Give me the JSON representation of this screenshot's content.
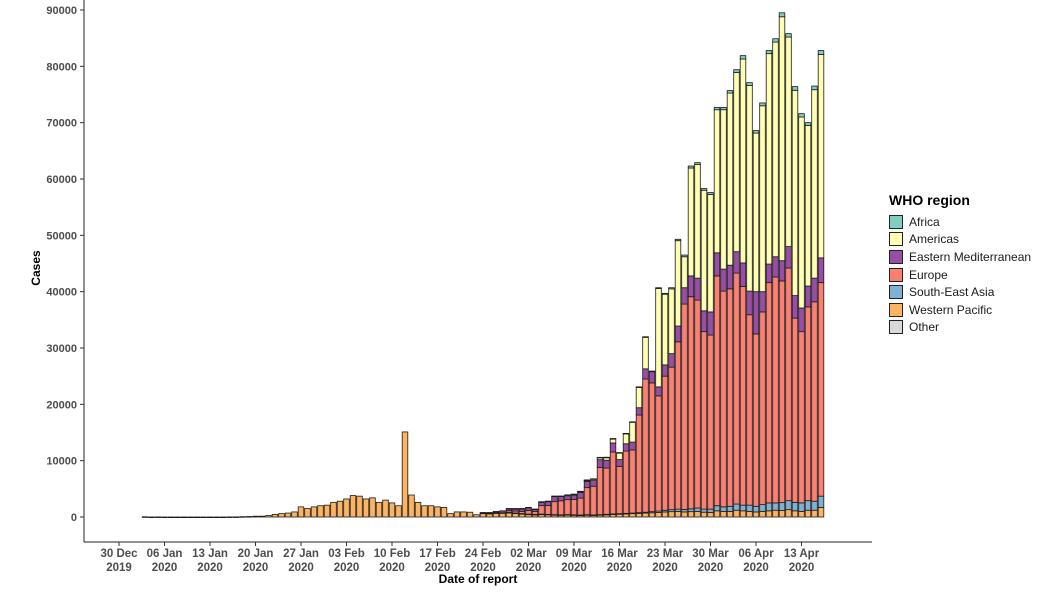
{
  "chart_data": {
    "type": "bar",
    "stacked": true,
    "xlabel": "Date of report",
    "ylabel": "Cases",
    "ylim": [
      0,
      90000
    ],
    "yticks": [
      0,
      10000,
      20000,
      30000,
      40000,
      50000,
      60000,
      70000,
      80000,
      90000
    ],
    "xticks": [
      {
        "date": "2019-12-30",
        "label": [
          "30 Dec",
          "2019"
        ]
      },
      {
        "date": "2020-01-06",
        "label": [
          "06 Jan",
          "2020"
        ]
      },
      {
        "date": "2020-01-13",
        "label": [
          "13 Jan",
          "2020"
        ]
      },
      {
        "date": "2020-01-20",
        "label": [
          "20 Jan",
          "2020"
        ]
      },
      {
        "date": "2020-01-27",
        "label": [
          "27 Jan",
          "2020"
        ]
      },
      {
        "date": "2020-02-03",
        "label": [
          "03 Feb",
          "2020"
        ]
      },
      {
        "date": "2020-02-10",
        "label": [
          "10 Feb",
          "2020"
        ]
      },
      {
        "date": "2020-02-17",
        "label": [
          "17 Feb",
          "2020"
        ]
      },
      {
        "date": "2020-02-24",
        "label": [
          "24 Feb",
          "2020"
        ]
      },
      {
        "date": "2020-03-02",
        "label": [
          "02 Mar",
          "2020"
        ]
      },
      {
        "date": "2020-03-09",
        "label": [
          "09 Mar",
          "2020"
        ]
      },
      {
        "date": "2020-03-16",
        "label": [
          "16 Mar",
          "2020"
        ]
      },
      {
        "date": "2020-03-23",
        "label": [
          "23 Mar",
          "2020"
        ]
      },
      {
        "date": "2020-03-30",
        "label": [
          "30 Mar",
          "2020"
        ]
      },
      {
        "date": "2020-04-06",
        "label": [
          "06 Apr",
          "2020"
        ]
      },
      {
        "date": "2020-04-13",
        "label": [
          "13 Apr",
          "2020"
        ]
      }
    ],
    "xlim": [
      "2019-12-26",
      "2020-04-21"
    ],
    "grid": false,
    "legend": {
      "title": "WHO region",
      "placement": "right"
    },
    "first_date": "2020-01-03",
    "last_date": "2020-04-16",
    "series": [
      {
        "name": "Africa",
        "color": "#80cdc1",
        "values": [
          0,
          0,
          0,
          0,
          0,
          0,
          0,
          0,
          0,
          0,
          0,
          0,
          0,
          0,
          0,
          0,
          0,
          0,
          0,
          0,
          0,
          0,
          0,
          0,
          0,
          0,
          0,
          0,
          0,
          0,
          0,
          0,
          0,
          0,
          0,
          0,
          0,
          0,
          0,
          0,
          0,
          0,
          0,
          0,
          0,
          0,
          0,
          0,
          0,
          0,
          0,
          0,
          0,
          0,
          0,
          0,
          0,
          0,
          0,
          0,
          0,
          0,
          0,
          0,
          0,
          0,
          5,
          10,
          10,
          20,
          20,
          30,
          30,
          40,
          40,
          50,
          80,
          100,
          100,
          150,
          150,
          200,
          250,
          300,
          350,
          300,
          300,
          350,
          400,
          400,
          450,
          500,
          600,
          500,
          450,
          500,
          550,
          600,
          700,
          600,
          650,
          600,
          500,
          650,
          700
        ]
      },
      {
        "name": "Americas",
        "color": "#ffffb3",
        "values": [
          0,
          0,
          0,
          0,
          0,
          0,
          0,
          0,
          0,
          0,
          0,
          0,
          0,
          0,
          0,
          0,
          0,
          0,
          0,
          0,
          0,
          0,
          0,
          0,
          0,
          0,
          0,
          0,
          0,
          0,
          0,
          0,
          0,
          0,
          0,
          0,
          0,
          0,
          0,
          0,
          0,
          0,
          0,
          0,
          0,
          0,
          0,
          0,
          0,
          0,
          0,
          0,
          0,
          0,
          0,
          0,
          50,
          50,
          50,
          50,
          50,
          100,
          100,
          100,
          100,
          150,
          150,
          200,
          250,
          300,
          400,
          500,
          750,
          1200,
          1800,
          3550,
          3620,
          5600,
          0,
          17450,
          12550,
          11500,
          15150,
          5500,
          19150,
          20200,
          21400,
          20850,
          25400,
          28300,
          30550,
          31800,
          36200,
          36500,
          28150,
          33000,
          37350,
          38100,
          43300,
          37200,
          36450,
          33900,
          28500,
          33450,
          36100
        ]
      },
      {
        "name": "Eastern Mediterranean",
        "color": "#984ea3",
        "values": [
          0,
          0,
          0,
          0,
          0,
          0,
          0,
          0,
          0,
          0,
          0,
          0,
          0,
          0,
          0,
          0,
          0,
          0,
          0,
          0,
          0,
          0,
          0,
          0,
          0,
          0,
          0,
          0,
          0,
          0,
          0,
          0,
          0,
          0,
          0,
          0,
          0,
          0,
          0,
          0,
          0,
          0,
          0,
          0,
          0,
          0,
          0,
          0,
          0,
          0,
          0,
          0,
          100,
          150,
          200,
          250,
          350,
          400,
          450,
          500,
          400,
          600,
          700,
          900,
          750,
          700,
          800,
          1000,
          1100,
          1000,
          1400,
          1400,
          1600,
          1200,
          1300,
          1400,
          1300,
          1800,
          2000,
          1600,
          2000,
          2400,
          2800,
          2900,
          3700,
          3900,
          3700,
          4100,
          4100,
          3900,
          4200,
          3800,
          4200,
          4200,
          7500,
          3600,
          3300,
          3600,
          3600,
          3800,
          4000,
          4200,
          3700,
          4200,
          4400
        ]
      },
      {
        "name": "Europe",
        "color": "#fb8072",
        "values": [
          0,
          0,
          0,
          0,
          0,
          0,
          0,
          0,
          0,
          0,
          0,
          0,
          0,
          0,
          0,
          0,
          0,
          0,
          0,
          0,
          0,
          0,
          0,
          0,
          0,
          0,
          0,
          0,
          0,
          0,
          0,
          0,
          0,
          0,
          0,
          0,
          0,
          0,
          0,
          0,
          0,
          0,
          0,
          0,
          0,
          0,
          0,
          0,
          0,
          0,
          0,
          0,
          100,
          100,
          150,
          250,
          300,
          350,
          400,
          650,
          500,
          1500,
          1550,
          2300,
          2500,
          2650,
          2700,
          3000,
          4800,
          5100,
          8350,
          8200,
          11000,
          8400,
          11050,
          11200,
          17330,
          23650,
          22850,
          20450,
          23800,
          25300,
          29700,
          36450,
          37650,
          36900,
          31500,
          30900,
          40800,
          38300,
          38600,
          41000,
          38800,
          33800,
          30600,
          34200,
          39100,
          40100,
          39350,
          41300,
          32700,
          30400,
          34400,
          35400,
          37900
        ]
      },
      {
        "name": "South-East Asia",
        "color": "#80b1d3",
        "values": [
          0,
          0,
          0,
          0,
          0,
          0,
          0,
          0,
          0,
          0,
          0,
          0,
          0,
          0,
          0,
          0,
          0,
          0,
          0,
          0,
          0,
          0,
          0,
          0,
          0,
          0,
          0,
          0,
          0,
          0,
          0,
          0,
          0,
          0,
          0,
          0,
          0,
          0,
          0,
          0,
          0,
          0,
          0,
          0,
          0,
          0,
          0,
          0,
          0,
          0,
          0,
          0,
          0,
          0,
          0,
          0,
          5,
          5,
          5,
          10,
          10,
          15,
          20,
          20,
          30,
          30,
          40,
          50,
          60,
          60,
          70,
          80,
          90,
          90,
          100,
          100,
          120,
          150,
          200,
          250,
          300,
          350,
          400,
          450,
          500,
          600,
          550,
          600,
          900,
          800,
          900,
          1100,
          1000,
          1100,
          1000,
          1200,
          1400,
          1300,
          1400,
          1600,
          1500,
          1500,
          1700,
          1600,
          2000
        ]
      },
      {
        "name": "Western Pacific",
        "color": "#fdb462",
        "values": [
          44,
          0,
          15,
          0,
          0,
          0,
          0,
          0,
          0,
          0,
          0,
          1,
          0,
          17,
          20,
          60,
          80,
          140,
          150,
          260,
          450,
          600,
          700,
          900,
          1800,
          1500,
          1800,
          2000,
          2100,
          2600,
          2800,
          3200,
          3800,
          3700,
          3200,
          3400,
          2600,
          3000,
          2500,
          2000,
          15100,
          3900,
          2600,
          2000,
          2000,
          1800,
          1700,
          600,
          900,
          900,
          850,
          400,
          600,
          550,
          650,
          600,
          800,
          700,
          600,
          500,
          450,
          500,
          450,
          400,
          350,
          400,
          350,
          300,
          350,
          300,
          350,
          400,
          450,
          500,
          550,
          600,
          650,
          700,
          750,
          800,
          900,
          950,
          1000,
          900,
          950,
          1000,
          850,
          800,
          1100,
          1000,
          1000,
          1200,
          1100,
          1000,
          900,
          1000,
          1100,
          1200,
          1150,
          1300,
          1100,
          1000,
          1200,
          1200,
          1700
        ]
      },
      {
        "name": "Other",
        "color": "#d9d9d9",
        "values": [
          0,
          0,
          0,
          0,
          0,
          0,
          0,
          0,
          0,
          0,
          0,
          0,
          0,
          0,
          0,
          0,
          0,
          0,
          0,
          0,
          0,
          0,
          0,
          0,
          0,
          0,
          0,
          0,
          0,
          0,
          0,
          0,
          0,
          0,
          0,
          0,
          0,
          0,
          0,
          0,
          0,
          0,
          0,
          0,
          0,
          0,
          0,
          0,
          0,
          0,
          0,
          0,
          0,
          0,
          0,
          0,
          0,
          0,
          0,
          0,
          0,
          0,
          0,
          0,
          0,
          0,
          0,
          0,
          0,
          0,
          0,
          0,
          0,
          0,
          0,
          0,
          0,
          0,
          0,
          0,
          0,
          0,
          0,
          0,
          0,
          0,
          0,
          0,
          0,
          0,
          0,
          0,
          0,
          0,
          0,
          0,
          0,
          0,
          0,
          0,
          0,
          0,
          0,
          0,
          0
        ]
      }
    ]
  }
}
